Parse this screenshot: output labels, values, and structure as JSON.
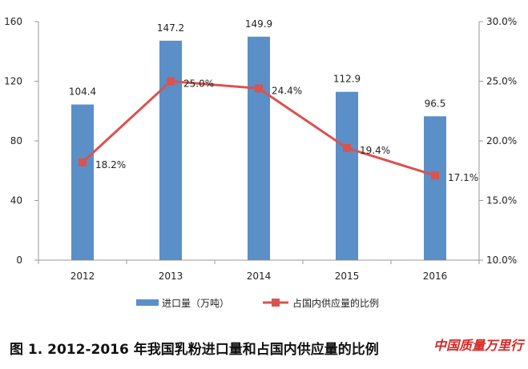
{
  "chart_data": {
    "type": "bar+line",
    "categories": [
      "2012",
      "2013",
      "2014",
      "2015",
      "2016"
    ],
    "series": [
      {
        "name": "进口量（万吨）",
        "type": "bar",
        "axis": "left",
        "values": [
          104.4,
          147.2,
          149.9,
          112.9,
          96.5
        ],
        "labels": [
          "104.4",
          "147.2",
          "149.9",
          "112.9",
          "96.5"
        ],
        "color": "#5b8fc7"
      },
      {
        "name": "占国内供应量的比例",
        "type": "line",
        "axis": "right",
        "values": [
          18.2,
          25.0,
          24.4,
          19.4,
          17.1
        ],
        "labels": [
          "18.2%",
          "25.0%",
          "24.4%",
          "19.4%",
          "17.1%"
        ],
        "color": "#d9534f"
      }
    ],
    "y_left": {
      "ylim": [
        0,
        160
      ],
      "ticks": [
        "0",
        "40",
        "80",
        "120",
        "160"
      ]
    },
    "y_right": {
      "ylim": [
        10.0,
        30.0
      ],
      "ticks": [
        "10.0%",
        "15.0%",
        "20.0%",
        "25.0%",
        "30.0%"
      ]
    },
    "grid": false,
    "legend": "bottom"
  },
  "caption": "图 1. 2012-2016 年我国乳粉进口量和占国内供应量的比例",
  "watermark": "中国质量万里行"
}
